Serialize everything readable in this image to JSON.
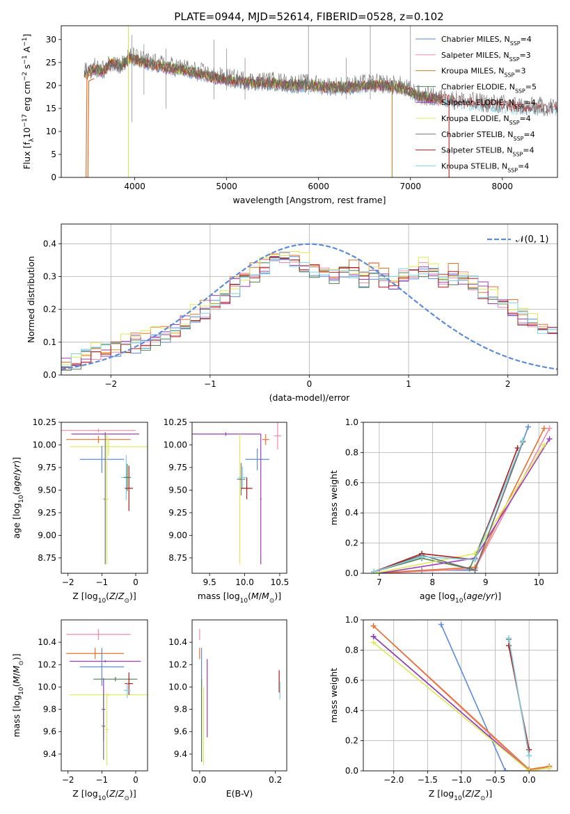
{
  "figure_title": "PLATE=0944, MJD=52614, FIBERID=0528, z=0.102",
  "colors": {
    "Chabrier MILES": "#5b8bd9",
    "Salpeter MILES": "#f08aa8",
    "Kroupa MILES": "#b8861c",
    "Chabrier ELODIE": "#4f7f4f",
    "Salpeter ELODIE": "#9a3cb8",
    "Kroupa ELODIE": "#dcea55",
    "Chabrier STELIB": "#707070",
    "Salpeter STELIB": "#b01818",
    "Kroupa STELIB": "#7fcfe0",
    "normal_curve": "#5b8bd9",
    "orange": "#e8702a"
  },
  "chart_data": [
    {
      "id": "spectrum",
      "type": "line",
      "xlabel": "wavelength [Angstrom, rest frame]",
      "ylabel": "Flux [f_λ 10^-17 erg cm^-2 s^-1 A^-1]",
      "xlim": [
        3200,
        8600
      ],
      "ylim": [
        0,
        33
      ],
      "xticks": [
        4000,
        5000,
        6000,
        7000,
        8000
      ],
      "yticks": [
        0,
        5,
        10,
        15,
        20,
        25,
        30
      ],
      "grid": false,
      "legend_position": "top-right",
      "legend": [
        {
          "label": "Chabrier MILES, N_SSP=4",
          "model": "Chabrier MILES"
        },
        {
          "label": "Salpeter MILES, N_SSP=3",
          "model": "Salpeter MILES"
        },
        {
          "label": "Kroupa MILES, N_SSP=3",
          "model": "Kroupa MILES"
        },
        {
          "label": "Chabrier ELODIE, N_SSP=5",
          "model": "Chabrier ELODIE"
        },
        {
          "label": "Salpeter ELODIE, N_SSP=4",
          "model": "Salpeter ELODIE"
        },
        {
          "label": "Kroupa ELODIE, N_SSP=4",
          "model": "Kroupa ELODIE"
        },
        {
          "label": "Chabrier STELIB, N_SSP=4",
          "model": "Chabrier STELIB"
        },
        {
          "label": "Salpeter STELIB, N_SSP=4",
          "model": "Salpeter STELIB"
        },
        {
          "label": "Kroupa STELIB, N_SSP=4",
          "model": "Kroupa STELIB"
        }
      ],
      "continuum": [
        [
          3450,
          22.5
        ],
        [
          3550,
          23.5
        ],
        [
          3650,
          23
        ],
        [
          3750,
          25
        ],
        [
          3850,
          24
        ],
        [
          3950,
          26
        ],
        [
          4100,
          25
        ],
        [
          4300,
          24
        ],
        [
          4500,
          23.5
        ],
        [
          4700,
          22.5
        ],
        [
          4900,
          21.5
        ],
        [
          5100,
          21
        ],
        [
          5300,
          20.5
        ],
        [
          5500,
          20.5
        ],
        [
          5700,
          20
        ],
        [
          5900,
          20
        ],
        [
          6100,
          19.5
        ],
        [
          6300,
          19.5
        ],
        [
          6500,
          20
        ],
        [
          6700,
          20
        ],
        [
          6900,
          19.5
        ],
        [
          7100,
          17.5
        ],
        [
          7300,
          17
        ],
        [
          7500,
          16.5
        ],
        [
          7700,
          16
        ],
        [
          8000,
          15.5
        ],
        [
          8300,
          15
        ],
        [
          8600,
          15
        ]
      ],
      "features": [
        {
          "x": 3930,
          "ymin": 0,
          "ymax": 33
        },
        {
          "x": 3970,
          "ymin": 12,
          "ymax": 31
        },
        {
          "x": 4100,
          "ymin": 18,
          "ymax": 29
        },
        {
          "x": 4340,
          "ymin": 15,
          "ymax": 28
        },
        {
          "x": 4861,
          "ymin": 17,
          "ymax": 30
        },
        {
          "x": 5000,
          "ymin": 19,
          "ymax": 28
        },
        {
          "x": 5200,
          "ymin": 17,
          "ymax": 26
        },
        {
          "x": 5890,
          "ymin": 18,
          "ymax": 33
        },
        {
          "x": 6300,
          "ymin": 17,
          "ymax": 26
        },
        {
          "x": 6563,
          "ymin": 17,
          "ymax": 33
        },
        {
          "x": 6800,
          "ymin": 0,
          "ymax": 21
        },
        {
          "x": 7000,
          "ymin": 17,
          "ymax": 33
        },
        {
          "x": 7420,
          "ymin": 0,
          "ymax": 18
        }
      ],
      "blue_edge_drops": [
        {
          "model": "Salpeter STELIB",
          "x": 3500,
          "y_bottom": 0,
          "y_top": 21
        },
        {
          "model": "Kroupa MILES",
          "x": 3480,
          "y_bottom": 0,
          "y_top": 22
        }
      ]
    },
    {
      "id": "residuals",
      "type": "histogram",
      "xlabel": "(data-model)/error",
      "ylabel": "Normed distribution",
      "xlim": [
        -2.5,
        2.5
      ],
      "ylim": [
        0,
        0.46
      ],
      "xticks": [
        -2,
        -1,
        0,
        1,
        2
      ],
      "yticks": [
        0.0,
        0.1,
        0.2,
        0.3,
        0.4
      ],
      "grid": true,
      "legend_position": "top-right",
      "legend": [
        {
          "label": "𝒩(0, 1)",
          "style": "dashed"
        }
      ],
      "bin_edges_start": -2.5,
      "bin_width": 0.1,
      "base_histogram": [
        0.04,
        0.05,
        0.06,
        0.07,
        0.08,
        0.09,
        0.1,
        0.1,
        0.11,
        0.12,
        0.13,
        0.14,
        0.16,
        0.18,
        0.2,
        0.22,
        0.24,
        0.27,
        0.29,
        0.31,
        0.33,
        0.35,
        0.36,
        0.35,
        0.34,
        0.33,
        0.32,
        0.31,
        0.33,
        0.32,
        0.3,
        0.32,
        0.3,
        0.28,
        0.3,
        0.31,
        0.33,
        0.32,
        0.3,
        0.31,
        0.29,
        0.28,
        0.26,
        0.24,
        0.22,
        0.2,
        0.18,
        0.16,
        0.15,
        0.14,
        0.13,
        0.12,
        0.1,
        0.08,
        0.07,
        0.09,
        0.08,
        0.07,
        0.06,
        0.05,
        0.05,
        0.04,
        0.04,
        0.03,
        0.03,
        0.03,
        0.03,
        0.02,
        0.02,
        0.02
      ]
    },
    {
      "id": "age_vs_Z",
      "type": "errorbar",
      "xlabel": "Z [log10(Z/Z⊙)]",
      "ylabel": "age  [log10(age/yr)]",
      "xlim": [
        -2.2,
        0.35
      ],
      "ylim": [
        8.58,
        10.25
      ],
      "xticks": [
        -2,
        -1,
        0
      ],
      "yticks": [
        8.75,
        9.0,
        9.25,
        9.5,
        9.75,
        10.0,
        10.25
      ],
      "ytick_labels": [
        "8.75",
        "9.00",
        "9.25",
        "9.50",
        "9.75",
        "10.00",
        "10.25"
      ],
      "grid": false,
      "points": [
        {
          "model": "Salpeter MILES",
          "x": -1.1,
          "xerr": 1.1,
          "y": 10.16,
          "yerr": 0.02
        },
        {
          "model": "orange",
          "x": -1.1,
          "xerr": 0.95,
          "y": 10.06,
          "yerr": 0.04
        },
        {
          "model": "Kroupa ELODIE",
          "x": -0.8,
          "xerr": 1.15,
          "y": 9.98,
          "yerr": 0.1
        },
        {
          "model": "Salpeter ELODIE",
          "x": -0.9,
          "xerr": 1.0,
          "y": 10.12,
          "yerr": 0.02
        },
        {
          "model": "Chabrier MILES",
          "x": -1.0,
          "xerr": 0.65,
          "y": 9.84,
          "yerr": 0.15
        },
        {
          "model": "Chabrier STELIB",
          "x": -0.9,
          "xerr": 0.05,
          "y": 9.4,
          "yerr": 0.72
        },
        {
          "model": "Kroupa ELODIE",
          "x": -0.85,
          "xerr": 0.05,
          "y": 9.4,
          "yerr": 0.72
        },
        {
          "model": "Kroupa STELIB",
          "x": -0.28,
          "xerr": 0.15,
          "y": 9.64,
          "yerr": 0.25
        },
        {
          "model": "Salpeter STELIB",
          "x": -0.2,
          "xerr": 0.12,
          "y": 9.52,
          "yerr": 0.25
        },
        {
          "model": "Chabrier ELODIE",
          "x": -0.25,
          "xerr": 0.1,
          "y": 9.64,
          "yerr": 0.15
        }
      ]
    },
    {
      "id": "age_vs_mass",
      "type": "errorbar",
      "xlabel": "mass [log10(M/M⊙)]",
      "ylabel": "",
      "xlim": [
        9.25,
        10.6
      ],
      "ylim": [
        8.58,
        10.25
      ],
      "xticks": [
        9.5,
        10.0,
        10.5
      ],
      "xtick_labels": [
        "9.5",
        "10.0",
        "10.5"
      ],
      "yticks": [
        8.75,
        9.0,
        9.25,
        9.5,
        9.75,
        10.0,
        10.25
      ],
      "ytick_labels": [
        "8.75",
        "9.00",
        "9.25",
        "9.50",
        "9.75",
        "10.00",
        "10.25"
      ],
      "grid": false,
      "points": [
        {
          "model": "Salpeter MILES",
          "x": 10.47,
          "xerr": 0.05,
          "y": 10.1,
          "yerr": 0.15
        },
        {
          "model": "orange",
          "x": 10.3,
          "xerr": 0.05,
          "y": 10.06,
          "yerr": 0.06
        },
        {
          "model": "Salpeter ELODIE",
          "x": 9.73,
          "xerr": 0.5,
          "y": 10.12,
          "yerr": 0.02
        },
        {
          "model": "Chabrier MILES",
          "x": 10.18,
          "xerr": 0.17,
          "y": 9.84,
          "yerr": 0.12
        },
        {
          "model": "Salpeter ELODIE",
          "x": 10.23,
          "xerr": 0.01,
          "y": 9.4,
          "yerr": 0.72
        },
        {
          "model": "Kroupa ELODIE",
          "x": 9.93,
          "xerr": 0.01,
          "y": 9.4,
          "yerr": 0.72
        },
        {
          "model": "Chabrier STELIB",
          "x": 9.95,
          "xerr": 0.06,
          "y": 9.62,
          "yerr": 0.18
        },
        {
          "model": "Kroupa STELIB",
          "x": 9.97,
          "xerr": 0.06,
          "y": 9.64,
          "yerr": 0.12
        },
        {
          "model": "Salpeter STELIB",
          "x": 10.03,
          "xerr": 0.08,
          "y": 9.52,
          "yerr": 0.12
        }
      ]
    },
    {
      "id": "mass_weight_vs_age",
      "type": "line",
      "xlabel": "age  [log10(age/yr)]",
      "ylabel": "mass weight",
      "xlim": [
        6.7,
        10.35
      ],
      "ylim": [
        0,
        1.0
      ],
      "xticks": [
        7,
        8,
        9,
        10
      ],
      "yticks": [
        0.0,
        0.2,
        0.4,
        0.6,
        0.8,
        1.0
      ],
      "grid": true,
      "series": [
        {
          "model": "Chabrier MILES",
          "x": [
            6.9,
            7.8,
            8.8,
            9.8
          ],
          "y": [
            0.0,
            0.02,
            0.02,
            0.97
          ]
        },
        {
          "model": "Salpeter MILES",
          "x": [
            7.0,
            8.8,
            10.2
          ],
          "y": [
            0.0,
            0.03,
            0.96
          ]
        },
        {
          "model": "orange",
          "x": [
            6.9,
            8.8,
            10.1
          ],
          "y": [
            0.0,
            0.04,
            0.96
          ]
        },
        {
          "model": "Chabrier ELODIE",
          "x": [
            6.9,
            7.8,
            8.7,
            9.7
          ],
          "y": [
            0.01,
            0.1,
            0.03,
            0.87
          ]
        },
        {
          "model": "Salpeter ELODIE",
          "x": [
            7.0,
            8.8,
            10.2
          ],
          "y": [
            0.0,
            0.1,
            0.89
          ]
        },
        {
          "model": "Kroupa ELODIE",
          "x": [
            6.9,
            8.8,
            10.1
          ],
          "y": [
            0.0,
            0.13,
            0.85
          ]
        },
        {
          "model": "Chabrier STELIB",
          "x": [
            6.9,
            7.8,
            8.8,
            9.7
          ],
          "y": [
            0.01,
            0.12,
            0.02,
            0.87
          ]
        },
        {
          "model": "Salpeter STELIB",
          "x": [
            6.9,
            7.8,
            8.8,
            9.6
          ],
          "y": [
            0.01,
            0.13,
            0.09,
            0.83
          ]
        },
        {
          "model": "Kroupa STELIB",
          "x": [
            6.9,
            7.8,
            8.8,
            9.7
          ],
          "y": [
            0.01,
            0.11,
            0.09,
            0.88
          ]
        }
      ]
    },
    {
      "id": "mass_vs_Z",
      "type": "errorbar",
      "xlabel": "Z [log10(Z/Z⊙)]",
      "ylabel": "mass [log10(M/M⊙)]",
      "xlim": [
        -2.2,
        0.35
      ],
      "ylim": [
        9.25,
        10.6
      ],
      "xticks": [
        -2,
        -1,
        0
      ],
      "yticks": [
        9.4,
        9.6,
        9.8,
        10.0,
        10.2,
        10.4
      ],
      "ytick_labels": [
        "9.4",
        "9.6",
        "9.8",
        "10.0",
        "10.2",
        "10.4"
      ],
      "grid": false,
      "points": [
        {
          "model": "Salpeter MILES",
          "x": -1.1,
          "xerr": 0.95,
          "y": 10.47,
          "yerr": 0.05
        },
        {
          "model": "orange",
          "x": -1.2,
          "xerr": 0.85,
          "y": 10.3,
          "yerr": 0.05
        },
        {
          "model": "Salpeter ELODIE",
          "x": -0.9,
          "xerr": 1.05,
          "y": 10.23,
          "yerr": 0.01
        },
        {
          "model": "Chabrier MILES",
          "x": -1.0,
          "xerr": 0.65,
          "y": 10.18,
          "yerr": 0.17
        },
        {
          "model": "Kroupa ELODIE",
          "x": -0.8,
          "xerr": 1.15,
          "y": 9.93,
          "yerr": 0.01
        },
        {
          "model": "Salpeter ELODIE",
          "x": -0.95,
          "xerr": 0.05,
          "y": 9.8,
          "yerr": 0.28
        },
        {
          "model": "Chabrier STELIB",
          "x": -0.95,
          "xerr": 0.05,
          "y": 9.65,
          "yerr": 0.3
        },
        {
          "model": "Kroupa ELODIE",
          "x": -0.85,
          "xerr": 0.05,
          "y": 9.62,
          "yerr": 0.32
        },
        {
          "model": "Chabrier ELODIE",
          "x": -0.6,
          "xerr": 0.65,
          "y": 10.07,
          "yerr": 0.02
        },
        {
          "model": "Salpeter STELIB",
          "x": -0.2,
          "xerr": 0.12,
          "y": 10.03,
          "yerr": 0.1
        },
        {
          "model": "Kroupa STELIB",
          "x": -0.25,
          "xerr": 0.1,
          "y": 9.97,
          "yerr": 0.07
        }
      ]
    },
    {
      "id": "mass_vs_EBV",
      "type": "errorbar",
      "xlabel": "E(B-V)",
      "ylabel": "",
      "xlim": [
        -0.02,
        0.23
      ],
      "ylim": [
        9.25,
        10.6
      ],
      "xticks": [
        0.0,
        0.2
      ],
      "xtick_labels": [
        "0.0",
        "0.2"
      ],
      "yticks": [
        9.4,
        9.6,
        9.8,
        10.0,
        10.2,
        10.4
      ],
      "ytick_labels": [
        "9.4",
        "9.6",
        "9.8",
        "10.0",
        "10.2",
        "10.4"
      ],
      "grid": false,
      "points": [
        {
          "model": "Salpeter MILES",
          "x": 0.0,
          "xerr": 0,
          "y": 10.47,
          "yerr": 0.05
        },
        {
          "model": "orange",
          "x": 0.0,
          "xerr": 0,
          "y": 10.3,
          "yerr": 0.05
        },
        {
          "model": "Chabrier MILES",
          "x": 0.005,
          "xerr": 0,
          "y": 10.18,
          "yerr": 0.17
        },
        {
          "model": "Salpeter ELODIE",
          "x": 0.02,
          "xerr": 0,
          "y": 9.9,
          "yerr": 0.35
        },
        {
          "model": "Chabrier ELODIE",
          "x": 0.005,
          "xerr": 0,
          "y": 9.7,
          "yerr": 0.37
        },
        {
          "model": "Kroupa ELODIE",
          "x": 0.01,
          "xerr": 0,
          "y": 9.65,
          "yerr": 0.35
        },
        {
          "model": "Salpeter STELIB",
          "x": 0.21,
          "xerr": 0,
          "y": 10.05,
          "yerr": 0.1
        },
        {
          "model": "Kroupa STELIB",
          "x": 0.212,
          "xerr": 0,
          "y": 9.97,
          "yerr": 0.08
        }
      ]
    },
    {
      "id": "mass_weight_vs_Z",
      "type": "line",
      "xlabel": "Z [log10(Z/Z⊙)]",
      "ylabel": "mass weight",
      "xlim": [
        -2.45,
        0.42
      ],
      "ylim": [
        0,
        1.0
      ],
      "xticks": [
        -2.0,
        -1.5,
        -1.0,
        -0.5,
        0.0
      ],
      "xtick_labels": [
        "−2.0",
        "−1.5",
        "−1.0",
        "−0.5",
        "0.0"
      ],
      "yticks": [
        0.0,
        0.2,
        0.4,
        0.6,
        0.8,
        1.0
      ],
      "grid": true,
      "series": [
        {
          "model": "Chabrier MILES",
          "x": [
            -1.3,
            -0.35,
            0.0
          ],
          "y": [
            0.97,
            0.0,
            0.0
          ]
        },
        {
          "model": "Salpeter MILES",
          "x": [
            -2.3,
            0.0,
            0.3
          ],
          "y": [
            0.96,
            0.0,
            0.03
          ]
        },
        {
          "model": "orange",
          "x": [
            -2.3,
            0.0,
            0.3
          ],
          "y": [
            0.96,
            0.01,
            0.03
          ]
        },
        {
          "model": "Chabrier ELODIE",
          "x": [
            -2.3,
            0.0,
            0.3
          ],
          "y": [
            0.89,
            0.0,
            0.02
          ]
        },
        {
          "model": "Salpeter ELODIE",
          "x": [
            -2.3,
            0.0,
            0.3
          ],
          "y": [
            0.89,
            0.0,
            0.02
          ]
        },
        {
          "model": "Kroupa ELODIE",
          "x": [
            -2.3,
            0.0,
            0.3
          ],
          "y": [
            0.85,
            0.0,
            0.02
          ]
        },
        {
          "model": "Chabrier STELIB",
          "x": [
            -0.3,
            0.0
          ],
          "y": [
            0.87,
            0.1
          ]
        },
        {
          "model": "Salpeter STELIB",
          "x": [
            -0.3,
            0.0
          ],
          "y": [
            0.83,
            0.14
          ]
        },
        {
          "model": "Kroupa STELIB",
          "x": [
            -0.3,
            0.0
          ],
          "y": [
            0.88,
            0.1
          ]
        }
      ]
    }
  ]
}
